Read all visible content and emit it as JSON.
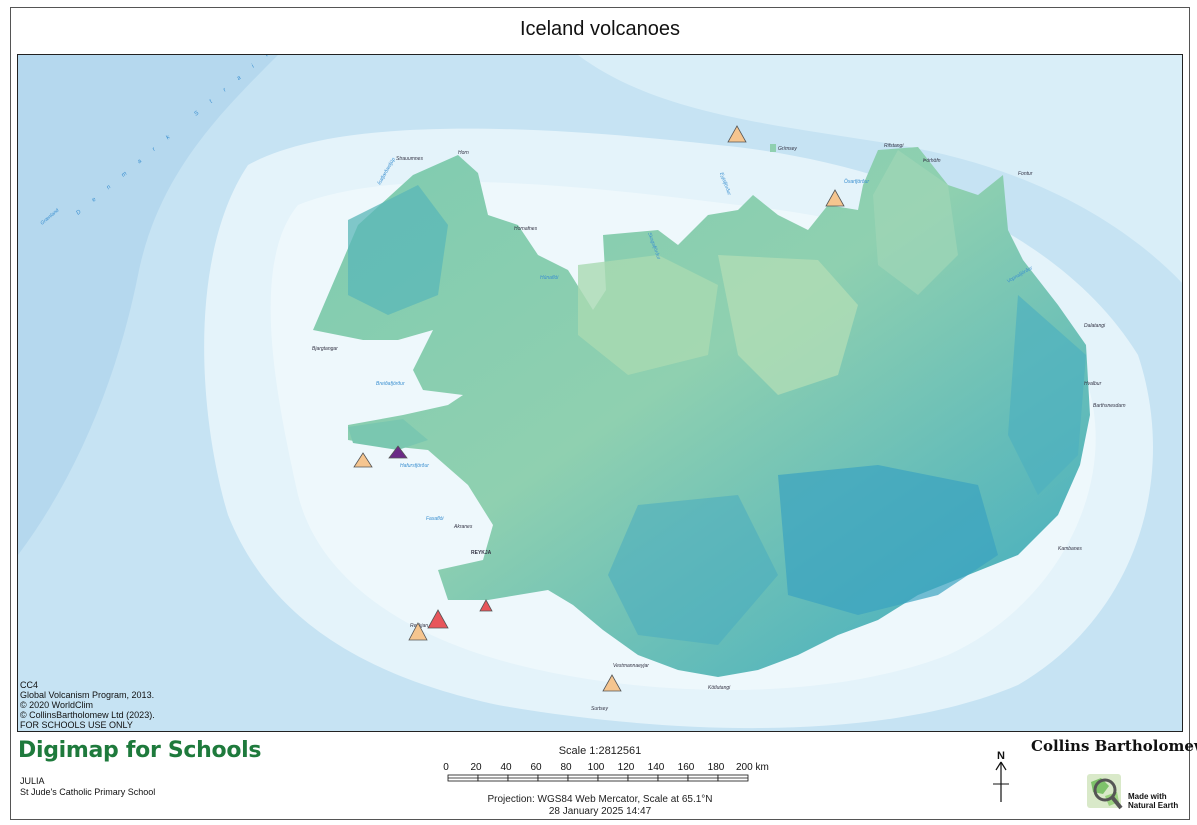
{
  "title": "Iceland volcanoes",
  "map": {
    "place_labels": [
      {
        "text": "Strauumnes"
      },
      {
        "text": "Horn"
      },
      {
        "text": "Ísafjarðardjúp"
      },
      {
        "text": "Hornafnes"
      },
      {
        "text": "Húnaflói"
      },
      {
        "text": "Skagafjörður"
      },
      {
        "text": "Eyjafjörður"
      },
      {
        "text": "Grímsey"
      },
      {
        "text": "Öxarfjörður"
      },
      {
        "text": "Rifstangi"
      },
      {
        "text": "Þórhöfn"
      },
      {
        "text": "Fontur"
      },
      {
        "text": "Vopnafjörður"
      },
      {
        "text": "Bjargtangar"
      },
      {
        "text": "Breiðafjörður"
      },
      {
        "text": "Faxaflói"
      },
      {
        "text": "Hafursfjörður"
      },
      {
        "text": "Akranes"
      },
      {
        "text": "REYKJA"
      },
      {
        "text": "Reykjan"
      },
      {
        "text": "Vestmannaeyjar"
      },
      {
        "text": "Surtsey"
      },
      {
        "text": "Kötlutangi"
      },
      {
        "text": "Barthsnesdarn"
      },
      {
        "text": "Hvalbur"
      },
      {
        "text": "Dalatangi"
      },
      {
        "text": "Kambanes"
      },
      {
        "text": "Grænland"
      },
      {
        "text": "Denmark Strait"
      }
    ],
    "volcano_colors": {
      "orange": "#f5c58f",
      "red": "#e8555a",
      "purple": "#6b2a86"
    }
  },
  "attribution": [
    "CC4",
    "Global Volcanism Program, 2013.",
    "© 2020 WorldClim",
    "© CollinsBartholomew Ltd (2023).",
    "FOR SCHOOLS USE ONLY"
  ],
  "brand": "Digimap for Schools",
  "user": {
    "name": "JULIA",
    "school": "St Jude's Catholic Primary School"
  },
  "scale": {
    "label": "Scale 1:2812561",
    "ticks": [
      "0",
      "20",
      "40",
      "60",
      "80",
      "100",
      "120",
      "140",
      "160",
      "180",
      "200 km"
    ]
  },
  "projection": "Projection: WGS84 Web Mercator, Scale at 65.1°N",
  "date": "28 January 2025 14:47",
  "north_label": "N",
  "publisher": "Collins Bartholomew",
  "natural_earth": {
    "line1": "Made with",
    "line2": "Natural Earth"
  }
}
